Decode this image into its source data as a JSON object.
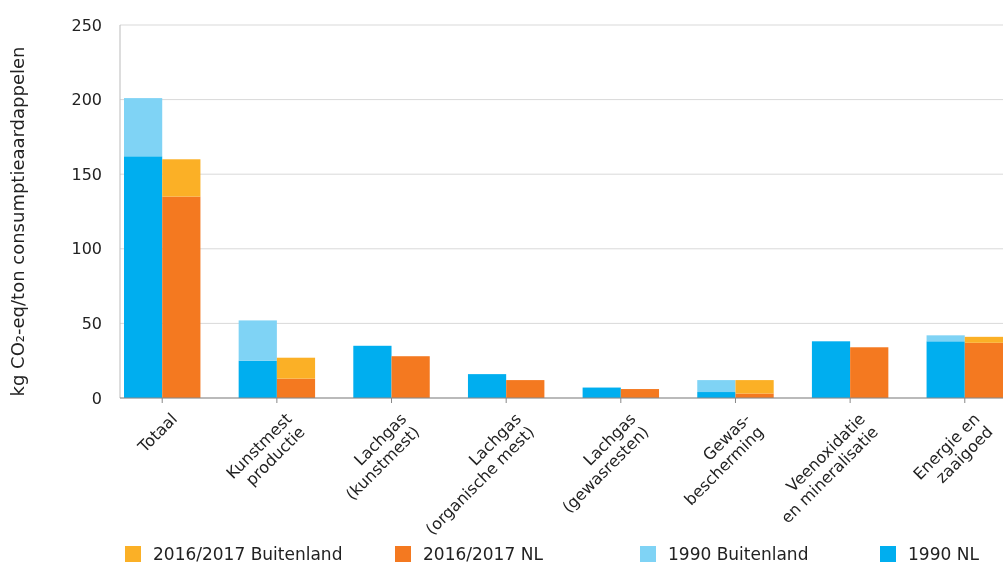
{
  "chart_data": {
    "type": "bar",
    "stacked": true,
    "ylabel": "kg CO₂-eq/ton consumptieaardappelen",
    "categories": [
      "Totaal",
      null,
      null,
      "Kunstmest\nproductie",
      null,
      null,
      "Lachgas\n(kunstmest)",
      null,
      null,
      "Lachgas\n(organische mest)",
      null,
      null,
      "Lachgas\n(gewasresten)",
      null,
      null,
      "Gewas-\nbescherming",
      null,
      null,
      "Veenoxidatie\nen mineralisatie",
      null,
      null,
      "Energie en\nzaaigoed",
      null,
      null
    ],
    "series": [
      {
        "name": "1990 NL",
        "color": "#00aeef",
        "values": [
          162,
          null,
          null,
          25,
          null,
          null,
          35,
          null,
          null,
          16,
          null,
          null,
          7,
          null,
          null,
          4,
          null,
          null,
          38,
          null,
          null,
          38,
          null,
          null
        ]
      },
      {
        "name": "1990 Buitenland",
        "color": "#7fd3f5",
        "values": [
          39,
          null,
          null,
          27,
          null,
          null,
          null,
          null,
          null,
          null,
          null,
          null,
          null,
          null,
          null,
          8,
          null,
          null,
          null,
          null,
          null,
          4,
          null,
          null
        ]
      },
      {
        "name": "2016/2017 NL",
        "color": "#f47920",
        "values": [
          null,
          135,
          null,
          null,
          13,
          null,
          null,
          28,
          null,
          null,
          12,
          null,
          null,
          6,
          null,
          null,
          3,
          null,
          null,
          34,
          null,
          null,
          37,
          null
        ]
      },
      {
        "name": "2016/2017 Buitenland",
        "color": "#fbb026",
        "values": [
          null,
          25,
          null,
          null,
          14,
          null,
          null,
          null,
          null,
          null,
          null,
          null,
          null,
          null,
          null,
          null,
          9,
          null,
          null,
          null,
          null,
          null,
          4,
          null
        ]
      }
    ],
    "ylim": [
      0,
      250
    ],
    "yticks": [
      0,
      50,
      100,
      150,
      200,
      250
    ],
    "grid": "y",
    "legend": "bottom"
  }
}
